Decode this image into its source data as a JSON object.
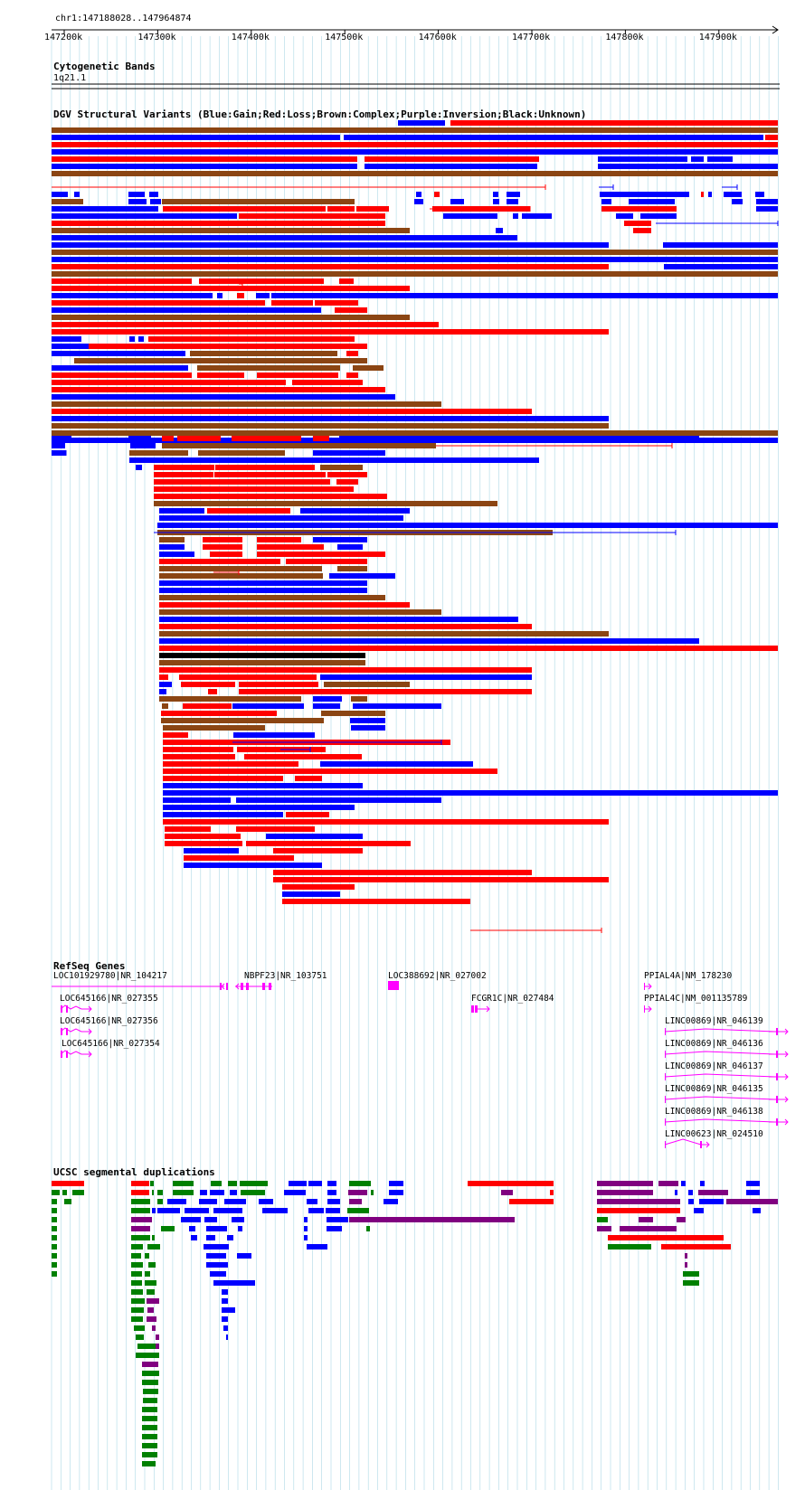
{
  "header": {
    "position": "chr1:147188028..147964874",
    "ticks": [
      "147200k",
      "147300k",
      "147400k",
      "147500k",
      "147600k",
      "147700k",
      "147800k",
      "147900k"
    ]
  },
  "tracks": {
    "cytoband": {
      "title": "Cytogenetic Bands",
      "band": "1q21.1"
    },
    "dgv": {
      "title": "DGV Structural Variants (Blue:Gain;Red:Loss;Brown:Complex;Purple:Inversion;Black:Unknown)"
    },
    "refseq": {
      "title": "RefSeq Genes"
    },
    "segdup": {
      "title": "UCSC segmental duplications"
    }
  },
  "genes": [
    "LOC101929780|NR_104217",
    "NBPF23|NR_103751",
    "LOC388692|NR_027002",
    "PPIAL4A|NM_178230",
    "LOC645166|NR_027355",
    "FCGR1C|NR_027484",
    "PPIAL4C|NM_001135789",
    "LOC645166|NR_027356",
    "LINC00869|NR_046139",
    "LOC645166|NR_027354",
    "LINC00869|NR_046136",
    "LINC00869|NR_046137",
    "LINC00869|NR_046135",
    "LINC00869|NR_046138",
    "LINC00623|NR_024510"
  ],
  "colors": {
    "gain": "#0000ff",
    "loss": "#ff0000",
    "complex": "#8b4513",
    "inversion": "#800080",
    "unknown": "#000000",
    "gene": "#ff00ff",
    "segdup_green": "#008000",
    "grid": "#add8e6"
  }
}
